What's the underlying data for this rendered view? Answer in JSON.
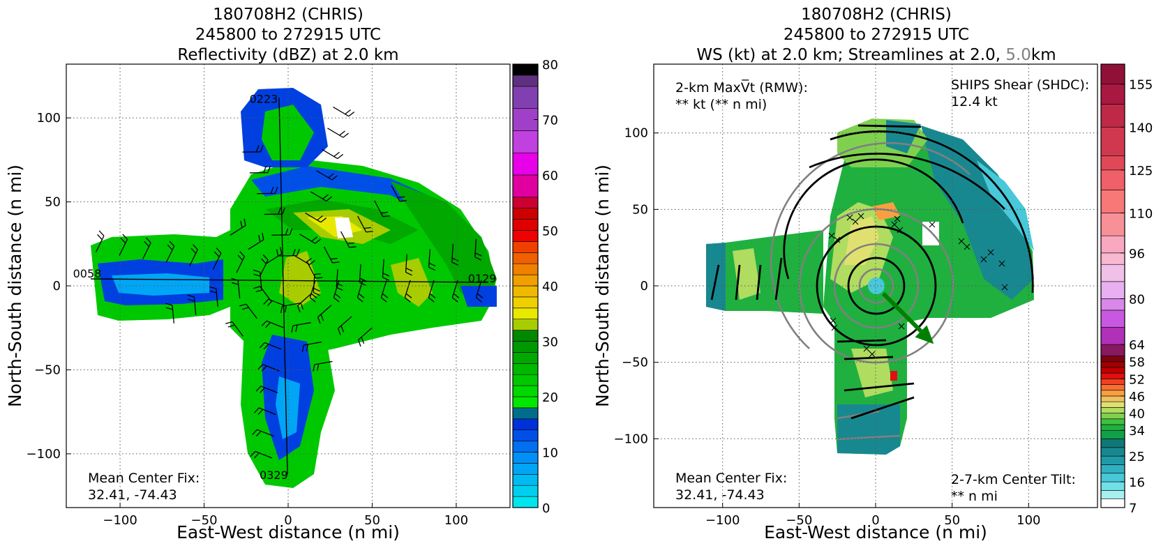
{
  "chart_data": [
    {
      "type": "heatmap",
      "title_lines": [
        "180708H2 (CHRIS)",
        "245800 to 272915 UTC",
        "Reflectivity (dBZ) at 2.0 km"
      ],
      "xlabel": "East-West distance (n mi)",
      "ylabel": "North-South distance (n mi)",
      "xlim": [
        -132,
        132
      ],
      "ylim": [
        -132,
        132
      ],
      "x_ticks": [
        -100,
        -50,
        0,
        50,
        100
      ],
      "x_tick_labels": [
        "−100",
        "−50",
        "0",
        "50",
        "100"
      ],
      "y_ticks": [
        -100,
        -50,
        0,
        50,
        100
      ],
      "y_tick_labels": [
        "−100",
        "−50",
        "0",
        "50",
        "100"
      ],
      "grid": true,
      "leg_labels": [
        {
          "text": "0223",
          "x": -23,
          "y": 109
        },
        {
          "text": "0058",
          "x": -128,
          "y": 5
        },
        {
          "text": "0129",
          "x": 107,
          "y": 2
        },
        {
          "text": "0329",
          "x": -17,
          "y": -115
        }
      ],
      "annotation": {
        "line1": "Mean Center Fix:",
        "line2": "32.41, -74.43"
      },
      "colorbar": {
        "min": 0,
        "max": 80,
        "ticks": [
          0,
          10,
          20,
          30,
          40,
          50,
          60,
          70,
          80
        ],
        "tick_labels": [
          "0",
          "10",
          "20",
          "30",
          "40",
          "50",
          "60",
          "70",
          "80"
        ],
        "colors": [
          "#00e5ee",
          "#00d0f0",
          "#00bbf2",
          "#00a6f5",
          "#0090f7",
          "#0070f0",
          "#0050e8",
          "#0030d8",
          "#006e8a",
          "#00e800",
          "#00d800",
          "#00c800",
          "#00b800",
          "#00a800",
          "#009800",
          "#008800",
          "#a8cc00",
          "#e8e800",
          "#f0d000",
          "#f0b800",
          "#f0a000",
          "#f08000",
          "#f06000",
          "#f04000",
          "#f00000",
          "#e00000",
          "#cc0000",
          "#cc0030",
          "#e000a0",
          "#e800e8",
          "#c040e0",
          "#a040c8",
          "#8040b0",
          "#603080",
          "#000000"
        ],
        "bounds": [
          0,
          2,
          4,
          6,
          8,
          10,
          12,
          14,
          16,
          18,
          20,
          22,
          24,
          26,
          28,
          30,
          32,
          34,
          36,
          38,
          40,
          42,
          44,
          46,
          48,
          50,
          52,
          54,
          56,
          60,
          64,
          68,
          72,
          76,
          78,
          80
        ]
      }
    },
    {
      "type": "heatmap",
      "title_lines": [
        "180708H2 (CHRIS)",
        "245800 to 272915 UTC"
      ],
      "title_line3_parts": [
        {
          "text": "WS (kt) at 2.0 km; Streamlines at 2.0, ",
          "color": "#000000"
        },
        {
          "text": "5.0",
          "color": "#808080"
        },
        {
          "text": "km",
          "color": "#000000"
        }
      ],
      "xlabel": "East-West distance (n mi)",
      "ylabel": "North-South distance (n mi)",
      "xlim": [
        -145,
        145
      ],
      "ylim": [
        -145,
        145
      ],
      "x_ticks": [
        -100,
        -50,
        0,
        50,
        100
      ],
      "x_tick_labels": [
        "−100",
        "−50",
        "0",
        "50",
        "100"
      ],
      "y_ticks": [
        -100,
        -50,
        0,
        50,
        100
      ],
      "y_tick_labels": [
        "−100",
        "−50",
        "0",
        "50",
        "100"
      ],
      "grid": true,
      "annotations": {
        "vmax_line1": "2-km MaxV̅t (RMW):",
        "vmax_line2": "** kt (** n mi)",
        "shear_line1": "SHIPS Shear (SHDC):",
        "shear_line2": "12.4 kt",
        "shear_color": "#008000",
        "center_line1": "Mean Center Fix:",
        "center_line2": "32.41, -74.43",
        "tilt_line1": "2-7-km Center Tilt:",
        "tilt_line2": "** n mi",
        "tilt_color": "#ff0000"
      },
      "shear_vector": {
        "from": [
          5,
          -5
        ],
        "to": [
          38,
          -38
        ],
        "color": "#008000"
      },
      "colorbar": {
        "ticks": [
          7,
          16,
          25,
          34,
          40,
          46,
          52,
          58,
          64,
          80,
          96,
          110,
          125,
          140,
          155
        ],
        "colors": [
          "#ffffff",
          "#a8f0f0",
          "#70e0e8",
          "#48c8d8",
          "#30b0c0",
          "#209aa8",
          "#188890",
          "#107878",
          "#10a048",
          "#20b040",
          "#40c040",
          "#80d050",
          "#b0dc60",
          "#e0e070",
          "#f0c060",
          "#f8a040",
          "#f87030",
          "#f04020",
          "#e01010",
          "#c00000",
          "#a00000",
          "#800010",
          "#881860",
          "#b030b8",
          "#c858e0",
          "#d888e8",
          "#e8b0f0",
          "#f0c0e8",
          "#f8b8d0",
          "#f8a8c0",
          "#f89098",
          "#f87878",
          "#f06068",
          "#e04858",
          "#d03850",
          "#c02848",
          "#a81840",
          "#901038"
        ],
        "bounds": [
          7,
          10,
          13,
          16,
          19,
          22,
          25,
          28,
          31,
          34,
          36,
          38,
          40,
          42,
          44,
          46,
          48,
          50,
          52,
          54,
          56,
          58,
          60,
          64,
          70,
          76,
          80,
          86,
          92,
          96,
          102,
          110,
          118,
          125,
          130,
          140,
          148,
          155,
          162
        ]
      }
    }
  ]
}
